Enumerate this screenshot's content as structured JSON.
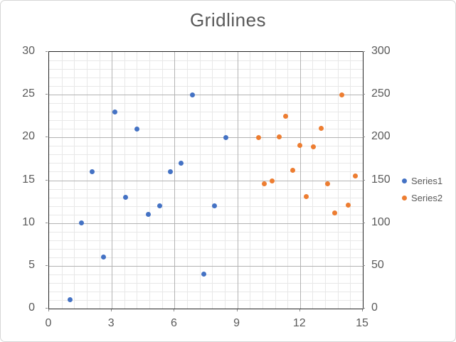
{
  "title": "Gridlines",
  "colors": {
    "series1": "#4472C4",
    "series2": "#ED7D31",
    "title_text": "#595959",
    "axis_text": "#595959",
    "major_grid": "#B3B3B3",
    "minor_grid": "#E8E8E8",
    "plot_border": "#262626",
    "chart_border": "#D6D6D6"
  },
  "legend": {
    "position": "right",
    "items": [
      {
        "label": "Series1",
        "color": "#4472C4"
      },
      {
        "label": "Series2",
        "color": "#ED7D31"
      }
    ]
  },
  "axes": {
    "x": {
      "min": 0,
      "max": 15,
      "major_unit": 3,
      "minor_unit": 0.6,
      "tick_labels": [
        "0",
        "3",
        "6",
        "9",
        "12",
        "15"
      ]
    },
    "y_left": {
      "min": 0,
      "max": 30,
      "major_unit": 5,
      "minor_unit": 1,
      "tick_labels": [
        "0",
        "5",
        "10",
        "15",
        "20",
        "25",
        "30"
      ]
    },
    "y_right": {
      "min": 0,
      "max": 300,
      "major_unit": 50,
      "minor_unit": 10,
      "tick_labels": [
        "0",
        "50",
        "100",
        "150",
        "200",
        "250",
        "300"
      ]
    }
  },
  "chart_data": {
    "type": "scatter",
    "title": "Gridlines",
    "xlabel": "",
    "ylabel": "",
    "x_range": [
      0,
      15
    ],
    "y_left_range": [
      0,
      30
    ],
    "y_right_range": [
      0,
      300
    ],
    "grid": "major and minor gridlines on",
    "legend_position": "right",
    "series": [
      {
        "name": "Series1",
        "axis": "left",
        "color": "#4472C4",
        "points": [
          [
            1.0,
            1
          ],
          [
            1.55,
            10
          ],
          [
            2.05,
            16
          ],
          [
            2.6,
            6
          ],
          [
            3.15,
            23
          ],
          [
            3.65,
            13
          ],
          [
            4.2,
            21
          ],
          [
            4.75,
            11
          ],
          [
            5.3,
            12
          ],
          [
            5.8,
            16
          ],
          [
            6.3,
            17
          ],
          [
            6.85,
            25
          ],
          [
            7.4,
            4
          ],
          [
            7.9,
            12
          ],
          [
            8.45,
            20
          ]
        ]
      },
      {
        "name": "Series2",
        "axis": "right",
        "color": "#ED7D31",
        "points": [
          [
            10.0,
            200
          ],
          [
            10.3,
            146
          ],
          [
            10.65,
            149
          ],
          [
            11.0,
            201
          ],
          [
            11.3,
            225
          ],
          [
            11.65,
            162
          ],
          [
            12.0,
            191
          ],
          [
            12.3,
            131
          ],
          [
            12.65,
            189
          ],
          [
            13.0,
            211
          ],
          [
            13.3,
            146
          ],
          [
            13.65,
            112
          ],
          [
            14.0,
            250
          ],
          [
            14.3,
            121
          ],
          [
            14.65,
            155
          ]
        ]
      }
    ]
  }
}
